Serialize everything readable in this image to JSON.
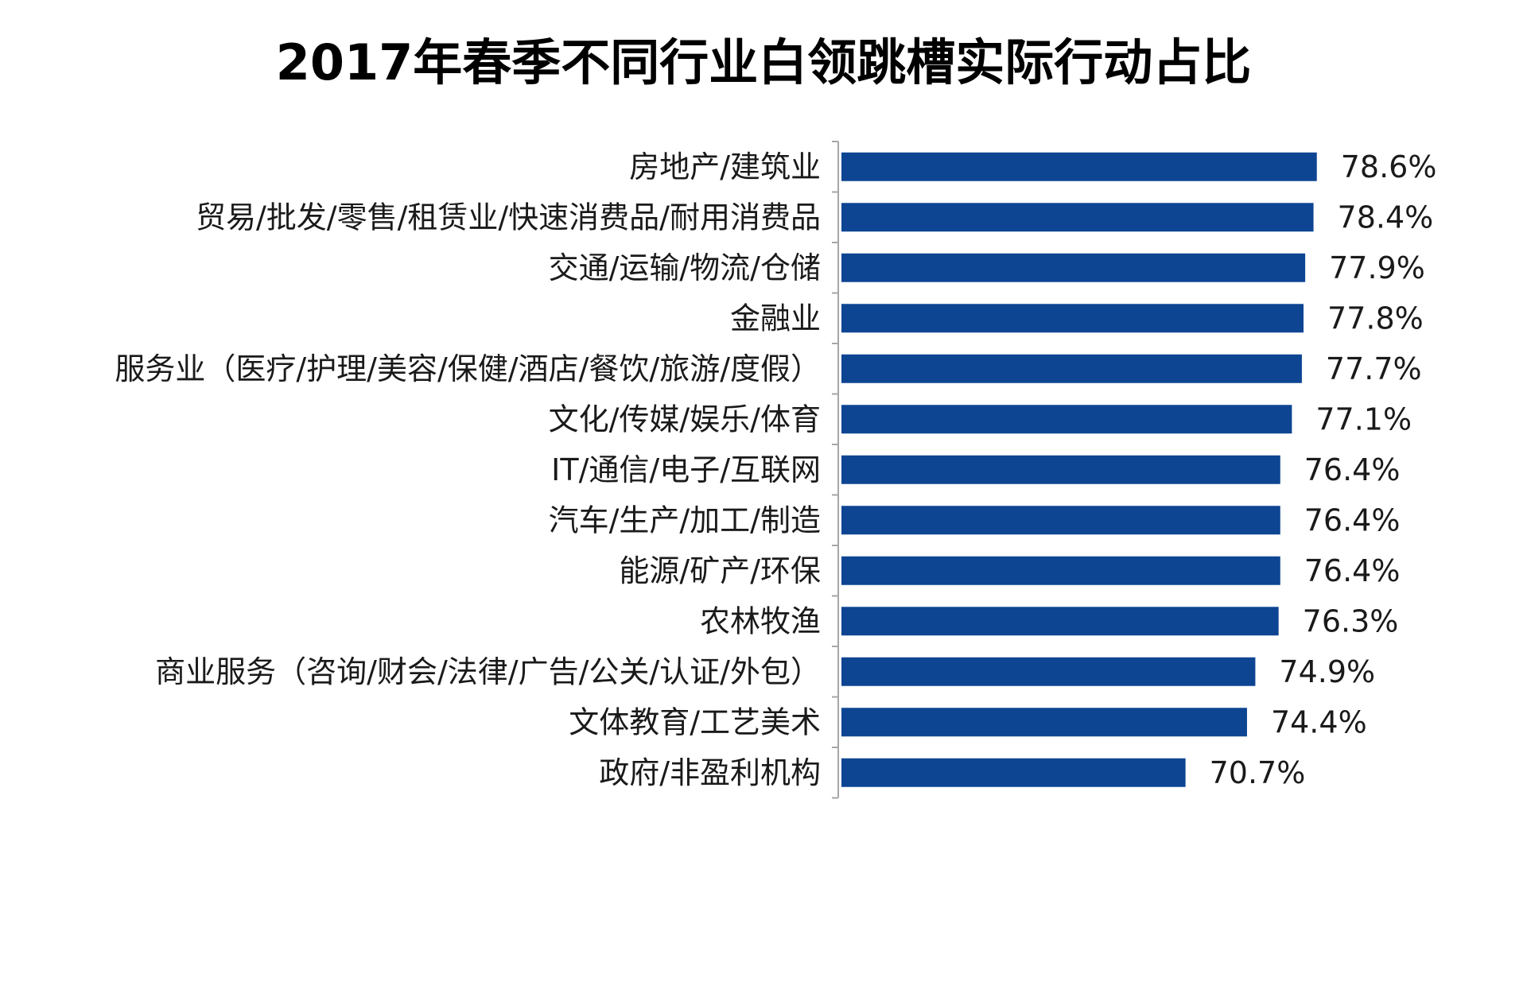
{
  "chart_data": {
    "type": "bar",
    "orientation": "horizontal",
    "title": "2017年春季不同行业白领跳槽实际行动占比",
    "categories": [
      "房地产/建筑业",
      "贸易/批发/零售/租赁业/快速消费品/耐用消费品",
      "交通/运输/物流/仓储",
      "金融业",
      "服务业（医疗/护理/美容/保健/酒店/餐饮/旅游/度假）",
      "文化/传媒/娱乐/体育",
      "IT/通信/电子/互联网",
      "汽车/生产/加工/制造",
      "能源/矿产/环保",
      "农林牧渔",
      "商业服务（咨询/财会/法律/广告/公关/认证/外包）",
      "文体教育/工艺美术",
      "政府/非盈利机构"
    ],
    "values": [
      78.6,
      78.4,
      77.9,
      77.8,
      77.7,
      77.1,
      76.4,
      76.4,
      76.4,
      76.3,
      74.9,
      74.4,
      70.7
    ],
    "value_labels": [
      "78.6%",
      "78.4%",
      "77.9%",
      "77.8%",
      "77.7%",
      "77.1%",
      "76.4%",
      "76.4%",
      "76.4%",
      "76.3%",
      "74.9%",
      "74.4%",
      "70.7%"
    ],
    "xlim": [
      50,
      80
    ],
    "grid": false,
    "legend": "none",
    "bar_color": "#0d4593",
    "axis_color": "#a6a6a6"
  }
}
